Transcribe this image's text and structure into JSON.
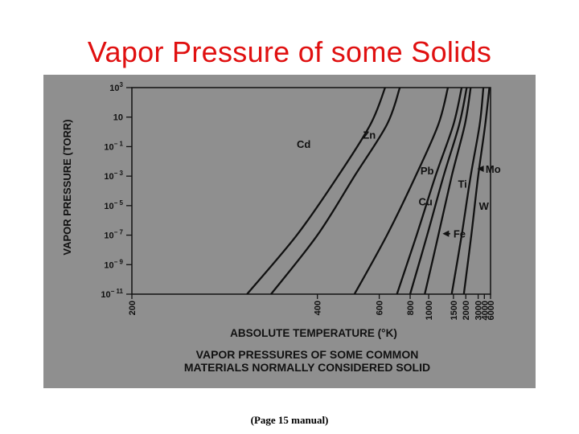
{
  "title": "Vapor Pressure of some Solids",
  "caption": "(Page 15 manual)",
  "colors": {
    "title": "#e01010",
    "figure_bg": "#8f8f8f",
    "ink": "#111111"
  },
  "chart_data": {
    "type": "line",
    "title": "VAPOR PRESSURES OF SOME COMMON MATERIALS NORMALLY CONSIDERED SOLID",
    "title_lines": [
      "VAPOR PRESSURES OF SOME COMMON",
      "MATERIALS NORMALLY CONSIDERED SOLID"
    ],
    "xlabel": "ABSOLUTE TEMPERATURE (°K)",
    "ylabel": "VAPOR PRESSURE (TORR)",
    "x_scale": "reciprocal",
    "y_scale": "log",
    "xlim": [
      200,
      6000
    ],
    "ylim_exponent": [
      -11,
      3
    ],
    "x_ticks": [
      200,
      400,
      600,
      800,
      1000,
      1500,
      2000,
      3000,
      4000,
      6000
    ],
    "x_tick_labels": [
      "200",
      "400",
      "600",
      "800",
      "1000",
      "1500",
      "2000",
      "3000",
      "4000",
      "6000"
    ],
    "y_ticks": [
      {
        "base": "10",
        "exp": "3"
      },
      {
        "base": "10",
        "exp": ""
      },
      {
        "base": "10",
        "exp": "− 1"
      },
      {
        "base": "10",
        "exp": "− 3"
      },
      {
        "base": "10",
        "exp": "− 5"
      },
      {
        "base": "10",
        "exp": "− 7"
      },
      {
        "base": "10",
        "exp": "− 9"
      },
      {
        "base": "10",
        "exp": "− 11"
      }
    ],
    "y_tick_exponents": [
      3,
      1,
      -1,
      -3,
      -5,
      -7,
      -9,
      -11
    ],
    "grid": false,
    "series": [
      {
        "name": "Cd",
        "points": [
          [
            290,
            -11
          ],
          [
            360,
            -7
          ],
          [
            450,
            -3
          ],
          [
            560,
            0.5
          ],
          [
            630,
            3
          ]
        ]
      },
      {
        "name": "Zn",
        "points": [
          [
            320,
            -11
          ],
          [
            400,
            -7
          ],
          [
            500,
            -3
          ],
          [
            640,
            0.5
          ],
          [
            720,
            3
          ]
        ]
      },
      {
        "name": "Pb",
        "points": [
          [
            500,
            -11
          ],
          [
            640,
            -7
          ],
          [
            850,
            -3
          ],
          [
            1150,
            0.5
          ],
          [
            1350,
            3
          ]
        ]
      },
      {
        "name": "Cu",
        "points": [
          [
            700,
            -11
          ],
          [
            860,
            -7
          ],
          [
            1100,
            -3
          ],
          [
            1500,
            0.5
          ],
          [
            1800,
            3
          ]
        ]
      },
      {
        "name": "Fe",
        "points": [
          [
            800,
            -11
          ],
          [
            980,
            -7
          ],
          [
            1250,
            -3
          ],
          [
            1700,
            0.5
          ],
          [
            2050,
            3
          ]
        ]
      },
      {
        "name": "Ti",
        "points": [
          [
            950,
            -11
          ],
          [
            1150,
            -7
          ],
          [
            1450,
            -3
          ],
          [
            1950,
            0.5
          ],
          [
            2300,
            3
          ]
        ]
      },
      {
        "name": "Mo",
        "points": [
          [
            1450,
            -11
          ],
          [
            1800,
            -7
          ],
          [
            2300,
            -3
          ],
          [
            3200,
            0.5
          ],
          [
            3800,
            3
          ]
        ]
      },
      {
        "name": "W",
        "points": [
          [
            1900,
            -11
          ],
          [
            2350,
            -7
          ],
          [
            3000,
            -3
          ],
          [
            4200,
            0.5
          ],
          [
            5500,
            3
          ]
        ]
      }
    ],
    "annotations": [
      {
        "text": "Cd",
        "x": 360,
        "y": -0.8
      },
      {
        "text": "Zn",
        "x": 530,
        "y": -0.2
      },
      {
        "text": "Pb",
        "x": 900,
        "y": -2.6
      },
      {
        "text": "Cu",
        "x": 880,
        "y": -4.7
      },
      {
        "text": "Ti",
        "x": 1650,
        "y": -3.5
      },
      {
        "text": "W",
        "x": 3100,
        "y": -5
      },
      {
        "text": "Mo",
        "x": 4300,
        "y": -2.5,
        "arrow_to_x": 2900,
        "arrow_to_y": -2.5
      },
      {
        "text": "Fe",
        "x": 1500,
        "y": -6.9,
        "arrow_to_x": 1230,
        "arrow_to_y": -6.9
      }
    ]
  }
}
